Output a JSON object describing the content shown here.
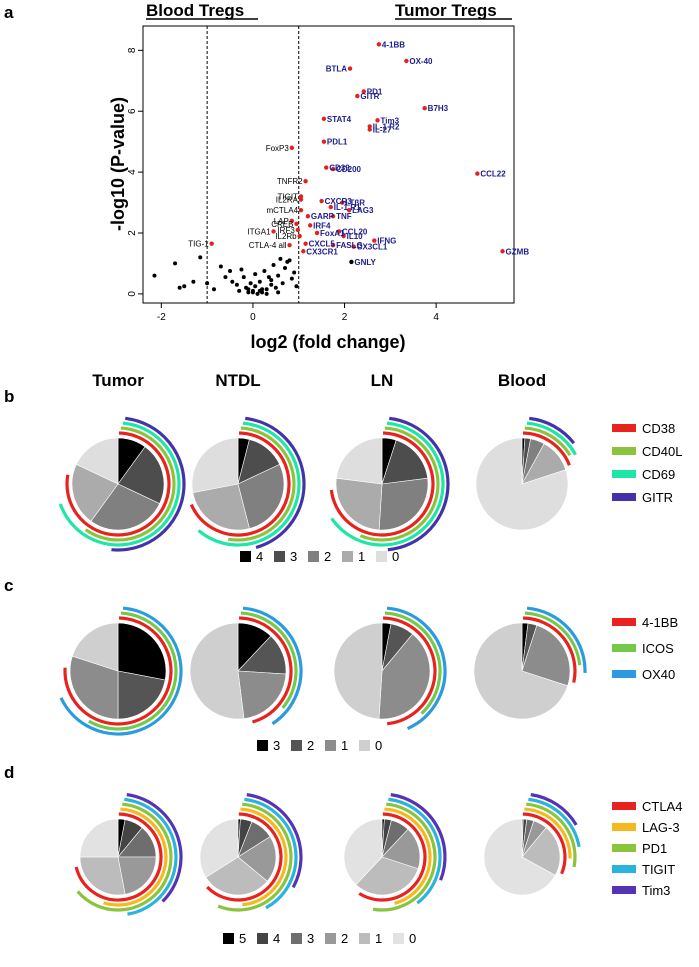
{
  "panel_labels": {
    "a": "a",
    "b": "b",
    "c": "c",
    "d": "d"
  },
  "column_headers": [
    "Tumor",
    "NTDL",
    "LN",
    "Blood"
  ],
  "chart_data": [
    {
      "type": "scatter",
      "panel": "a",
      "header_left": "Blood Tregs",
      "header_right": "Tumor Tregs",
      "xlabel": "log2 (fold change)",
      "ylabel": "-log10 (P-value)",
      "xlim": [
        -2.4,
        5.7
      ],
      "ylim": [
        -0.3,
        8.8
      ],
      "xticks": [
        "-2",
        "0",
        "2",
        "4"
      ],
      "xtick_values": [
        -2,
        0,
        2,
        4
      ],
      "yticks": [
        "0",
        "2",
        "4",
        "6",
        "8"
      ],
      "ytick_values": [
        0,
        2,
        4,
        6,
        8
      ],
      "threshold_lines": [
        -1,
        1
      ],
      "labeled_points": [
        {
          "label": "4-1BB",
          "x": 2.75,
          "y": 8.2,
          "sig": true
        },
        {
          "label": "OX-40",
          "x": 3.35,
          "y": 7.65,
          "sig": true
        },
        {
          "label": "BTLA",
          "x": 2.12,
          "y": 7.4,
          "sig": true
        },
        {
          "label": "PD1",
          "x": 2.42,
          "y": 6.65,
          "sig": true
        },
        {
          "label": "GITR",
          "x": 2.28,
          "y": 6.5,
          "sig": true
        },
        {
          "label": "B7H3",
          "x": 3.75,
          "y": 6.1,
          "sig": true
        },
        {
          "label": "STAT4",
          "x": 1.55,
          "y": 5.75,
          "sig": true
        },
        {
          "label": "Tim3",
          "x": 2.72,
          "y": 5.7,
          "sig": true
        },
        {
          "label": "IL-1 R2",
          "x": 2.55,
          "y": 5.5,
          "sig": true
        },
        {
          "label": "IL-27",
          "x": 2.55,
          "y": 5.4,
          "sig": true
        },
        {
          "label": "FoxP3",
          "x": 0.85,
          "y": 4.8,
          "sig": true
        },
        {
          "label": "PDL1",
          "x": 1.55,
          "y": 5.0,
          "sig": true
        },
        {
          "label": "CD39",
          "x": 1.6,
          "y": 4.15,
          "sig": true
        },
        {
          "label": "CD200",
          "x": 1.75,
          "y": 4.1,
          "sig": true
        },
        {
          "label": "CCL22",
          "x": 4.9,
          "y": 3.95,
          "sig": true
        },
        {
          "label": "TNFR2",
          "x": 1.15,
          "y": 3.7,
          "sig": true
        },
        {
          "label": "TIGIT",
          "x": 1.05,
          "y": 3.2,
          "sig": true
        },
        {
          "label": "CXCR3",
          "x": 1.5,
          "y": 3.05,
          "sig": true
        },
        {
          "label": "LTβR",
          "x": 1.95,
          "y": 3.0,
          "sig": true
        },
        {
          "label": "IL2RA",
          "x": 1.05,
          "y": 3.1,
          "sig": true
        },
        {
          "label": "IL-1 R1",
          "x": 1.7,
          "y": 2.85,
          "sig": true
        },
        {
          "label": "mCTLA4",
          "x": 1.05,
          "y": 2.75,
          "sig": true
        },
        {
          "label": "LAG3",
          "x": 2.1,
          "y": 2.75,
          "sig": true
        },
        {
          "label": "GARP",
          "x": 1.2,
          "y": 2.55,
          "sig": true
        },
        {
          "label": "TNF",
          "x": 1.75,
          "y": 2.55,
          "sig": true
        },
        {
          "label": "LAP",
          "x": 0.85,
          "y": 2.4,
          "sig": true
        },
        {
          "label": "CREB",
          "x": 0.95,
          "y": 2.3,
          "sig": true
        },
        {
          "label": "IRF4",
          "x": 1.25,
          "y": 2.25,
          "sig": true
        },
        {
          "label": "IRF3",
          "x": 0.98,
          "y": 2.1,
          "sig": true
        },
        {
          "label": "ITGA1",
          "x": 0.45,
          "y": 2.05,
          "sig": true
        },
        {
          "label": "FoxA1",
          "x": 1.4,
          "y": 2.0,
          "sig": true
        },
        {
          "label": "CCL20",
          "x": 1.88,
          "y": 2.05,
          "sig": true
        },
        {
          "label": "IL2Rb",
          "x": 1.02,
          "y": 1.9,
          "sig": true
        },
        {
          "label": "IL10",
          "x": 1.98,
          "y": 1.9,
          "sig": true
        },
        {
          "label": "IFNG",
          "x": 2.65,
          "y": 1.75,
          "sig": true
        },
        {
          "label": "TIG-1",
          "x": -0.9,
          "y": 1.65,
          "sig": true
        },
        {
          "label": "CTLA-4 all",
          "x": 0.8,
          "y": 1.6,
          "sig": true
        },
        {
          "label": "CXCL5",
          "x": 1.15,
          "y": 1.65,
          "sig": true
        },
        {
          "label": "FASLG",
          "x": 1.75,
          "y": 1.6,
          "sig": true
        },
        {
          "label": "CX3CL1",
          "x": 2.2,
          "y": 1.55,
          "sig": true
        },
        {
          "label": "CX3CR1",
          "x": 1.1,
          "y": 1.4,
          "sig": true
        },
        {
          "label": "GNLY",
          "x": 2.15,
          "y": 1.05,
          "sig": false
        },
        {
          "label": "GZMB",
          "x": 5.45,
          "y": 1.4,
          "sig": true
        }
      ],
      "unlabeled_points": [
        [
          -2.15,
          0.6
        ],
        [
          -1.7,
          1.0
        ],
        [
          -1.6,
          0.2
        ],
        [
          -1.5,
          0.25
        ],
        [
          -1.3,
          0.4
        ],
        [
          -1.15,
          1.2
        ],
        [
          -1.0,
          0.35
        ],
        [
          -0.85,
          0.15
        ],
        [
          -0.7,
          0.9
        ],
        [
          -0.6,
          0.55
        ],
        [
          -0.5,
          0.75
        ],
        [
          -0.45,
          0.4
        ],
        [
          -0.35,
          0.3
        ],
        [
          -0.3,
          0.1
        ],
        [
          -0.2,
          0.55
        ],
        [
          -0.15,
          0.2
        ],
        [
          -0.1,
          0.05
        ],
        [
          0.0,
          0.1
        ],
        [
          0.05,
          0.25
        ],
        [
          0.1,
          0.0
        ],
        [
          0.15,
          0.4
        ],
        [
          0.2,
          0.05
        ],
        [
          0.25,
          0.75
        ],
        [
          0.3,
          0.15
        ],
        [
          0.35,
          0.55
        ],
        [
          0.4,
          0.3
        ],
        [
          0.45,
          0.95
        ],
        [
          0.5,
          0.2
        ],
        [
          0.55,
          0.6
        ],
        [
          0.6,
          1.15
        ],
        [
          0.65,
          0.35
        ],
        [
          0.7,
          0.85
        ],
        [
          0.75,
          1.05
        ],
        [
          0.8,
          1.1
        ],
        [
          0.85,
          0.5
        ],
        [
          0.9,
          0.7
        ],
        [
          0.95,
          0.25
        ],
        [
          0.05,
          0.65
        ],
        [
          -0.05,
          0.35
        ],
        [
          0.3,
          0.0
        ],
        [
          0.2,
          0.15
        ],
        [
          -0.25,
          0.8
        ],
        [
          0.55,
          0.05
        ],
        [
          0.0,
          0.05
        ],
        [
          0.15,
          0.1
        ],
        [
          -0.1,
          0.15
        ],
        [
          0.4,
          0.45
        ]
      ]
    },
    {
      "type": "pie",
      "panel": "b",
      "pies": [
        {
          "name": "Tumor",
          "values": [
            10,
            22,
            28,
            22,
            18
          ]
        },
        {
          "name": "NTDL",
          "values": [
            4,
            14,
            28,
            26,
            28
          ]
        },
        {
          "name": "LN",
          "values": [
            5,
            18,
            28,
            26,
            23
          ]
        },
        {
          "name": "Blood",
          "values": [
            1,
            2,
            5,
            12,
            80
          ]
        }
      ],
      "legend_scale": [
        "4",
        "3",
        "2",
        "1",
        "0"
      ],
      "legend_markers": [
        {
          "label": "CD38",
          "color": "#e8231f"
        },
        {
          "label": "CD40L",
          "color": "#8ac43f"
        },
        {
          "label": "CD69",
          "color": "#1de6a8"
        },
        {
          "label": "GITR",
          "color": "#4433a8"
        }
      ]
    },
    {
      "type": "pie",
      "panel": "c",
      "pies": [
        {
          "name": "Tumor",
          "values": [
            28,
            22,
            30,
            20
          ]
        },
        {
          "name": "NTDL",
          "values": [
            12,
            14,
            22,
            52
          ]
        },
        {
          "name": "LN",
          "values": [
            3,
            8,
            40,
            49
          ]
        },
        {
          "name": "Blood",
          "values": [
            2,
            3,
            25,
            70
          ]
        }
      ],
      "legend_scale": [
        "3",
        "2",
        "1",
        "0"
      ],
      "legend_markers": [
        {
          "label": "4-1BB",
          "color": "#e8231f"
        },
        {
          "label": "ICOS",
          "color": "#73c94a"
        },
        {
          "label": "OX40",
          "color": "#2a9bde"
        }
      ]
    },
    {
      "type": "pie",
      "panel": "d",
      "pies": [
        {
          "name": "Tumor",
          "values": [
            3,
            8,
            14,
            22,
            28,
            25
          ]
        },
        {
          "name": "NTDL",
          "values": [
            1,
            5,
            10,
            20,
            30,
            34
          ]
        },
        {
          "name": "LN",
          "values": [
            1,
            3,
            8,
            18,
            32,
            38
          ]
        },
        {
          "name": "Blood",
          "values": [
            0.5,
            1.5,
            3,
            6,
            22,
            67
          ]
        }
      ],
      "legend_scale": [
        "5",
        "4",
        "3",
        "2",
        "1",
        "0"
      ],
      "legend_markers": [
        {
          "label": "CTLA4",
          "color": "#e8231f"
        },
        {
          "label": "LAG-3",
          "color": "#f5b91e"
        },
        {
          "label": "PD1",
          "color": "#8ac43f"
        },
        {
          "label": "TIGIT",
          "color": "#2ab3df"
        },
        {
          "label": "Tim3",
          "color": "#5533b5"
        }
      ]
    }
  ]
}
